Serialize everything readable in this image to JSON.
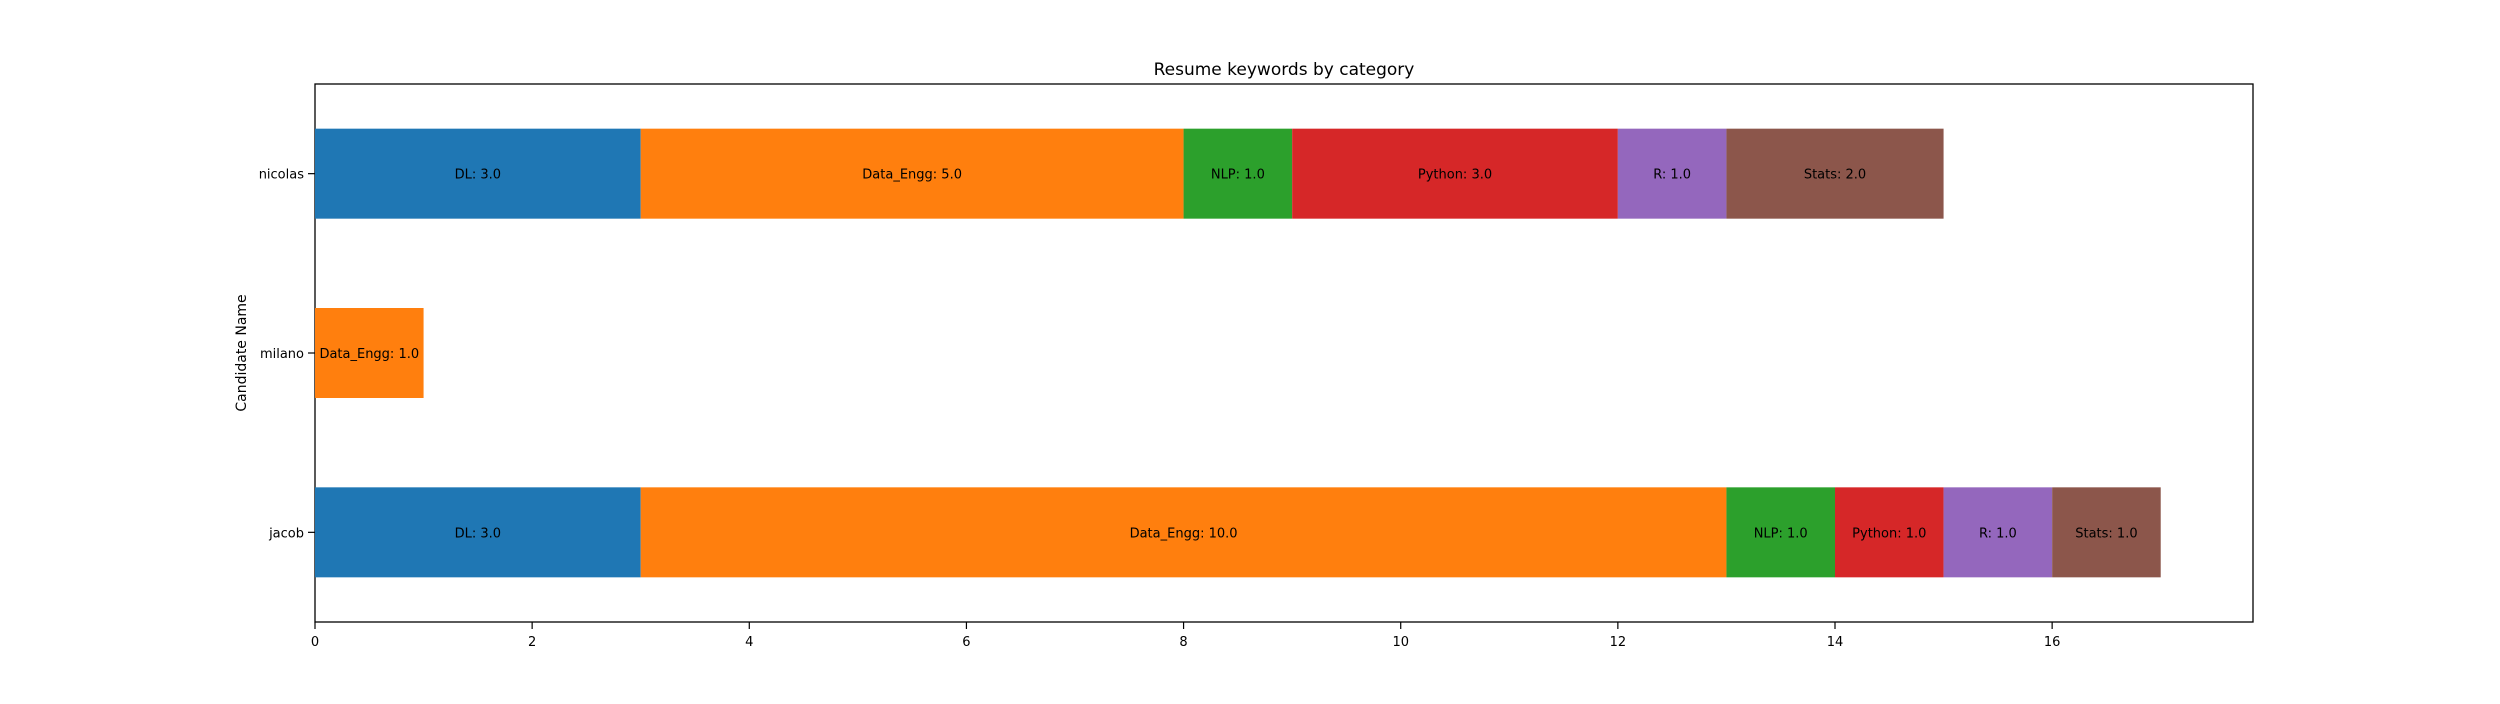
{
  "chart_data": {
    "type": "bar",
    "orientation": "horizontal",
    "stacked": true,
    "title": "Resume keywords by category",
    "xlabel": "",
    "ylabel": "Candidate Name",
    "xlim": [
      0,
      17.85
    ],
    "xticks": [
      0,
      2,
      4,
      6,
      8,
      10,
      12,
      14,
      16
    ],
    "categories": [
      "jacob",
      "milano",
      "nicolas"
    ],
    "grid": false,
    "legend": "none",
    "series": [
      {
        "name": "DL",
        "color": "#1f77b4",
        "values": [
          3.0,
          0,
          3.0
        ]
      },
      {
        "name": "Data_Engg",
        "color": "#ff7f0e",
        "values": [
          10.0,
          1.0,
          5.0
        ]
      },
      {
        "name": "NLP",
        "color": "#2ca02c",
        "values": [
          1.0,
          0,
          1.0
        ]
      },
      {
        "name": "Python",
        "color": "#d62728",
        "values": [
          1.0,
          0,
          3.0
        ]
      },
      {
        "name": "R",
        "color": "#9467bd",
        "values": [
          1.0,
          0,
          1.0
        ]
      },
      {
        "name": "Stats",
        "color": "#8c564b",
        "values": [
          1.0,
          0,
          2.0
        ]
      }
    ]
  }
}
